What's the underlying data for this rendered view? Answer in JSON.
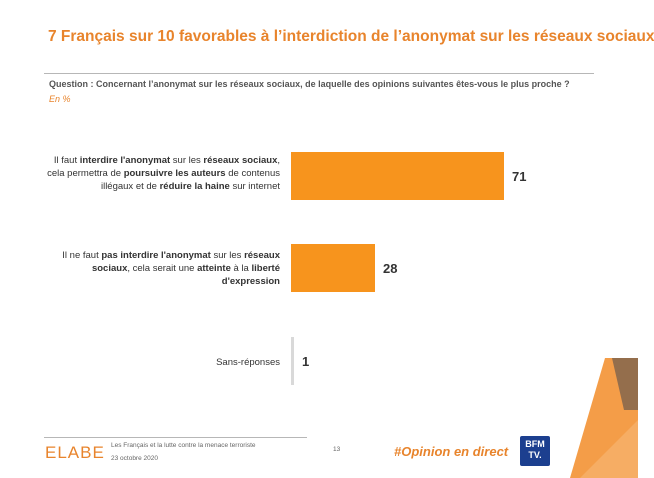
{
  "header": {
    "title": "7 Français sur 10 favorables à l’interdiction de l’anonymat sur les réseaux sociaux",
    "question": "Question : Concernant l’anonymat sur les réseaux sociaux, de laquelle des opinions suivantes êtes-vous le plus proche ?",
    "unit": "En %"
  },
  "chart_data": {
    "type": "bar",
    "orientation": "horizontal",
    "categories": [
      "Il faut interdire l'anonymat sur les réseaux sociaux, cela permettra de poursuivre les auteurs de contenus illégaux et de réduire la haine sur internet",
      "Il ne faut pas interdire l'anonymat sur les réseaux sociaux, cela serait une atteinte à la liberté d'expression",
      "Sans-réponses"
    ],
    "values": [
      71,
      28,
      1
    ],
    "value_labels": [
      "71",
      "28",
      "1"
    ],
    "bar_colors": [
      "#f7941d",
      "#f7941d",
      "#d9d9d9"
    ],
    "xlim": [
      0,
      100
    ],
    "grid": false,
    "legend": "none"
  },
  "labels": {
    "cat1": {
      "p1": "Il faut ",
      "b1": "interdire l'anonymat",
      "p2": " sur les ",
      "b2": "réseaux sociaux",
      "p3": ",",
      "p4": "cela permettra de ",
      "b3": "poursuivre les auteurs",
      "p5": " de contenus",
      "p6": "illégaux et de ",
      "b4": "réduire la haine",
      "p7": " sur internet"
    },
    "cat2": {
      "p1": "Il ne faut ",
      "b1": "pas interdire l'anonymat",
      "p2": " sur les ",
      "b2": "réseaux",
      "b3": "sociaux",
      "p3": ", cela serait une ",
      "b4": "atteinte",
      "p4": " à la ",
      "b5": "liberté",
      "b6": "d'expression"
    },
    "cat3": "Sans-réponses"
  },
  "footer": {
    "logo": "ELABE",
    "study": "Les Français et la lutte contre la menace terroriste",
    "date": "23 octobre 2020",
    "page": "13",
    "hashtag": "#Opinion en direct",
    "partner_line1": "BFM",
    "partner_line2": "TV."
  },
  "colors": {
    "accent": "#e8842c",
    "bar": "#f7941d",
    "partner": "#1c3f8f"
  }
}
